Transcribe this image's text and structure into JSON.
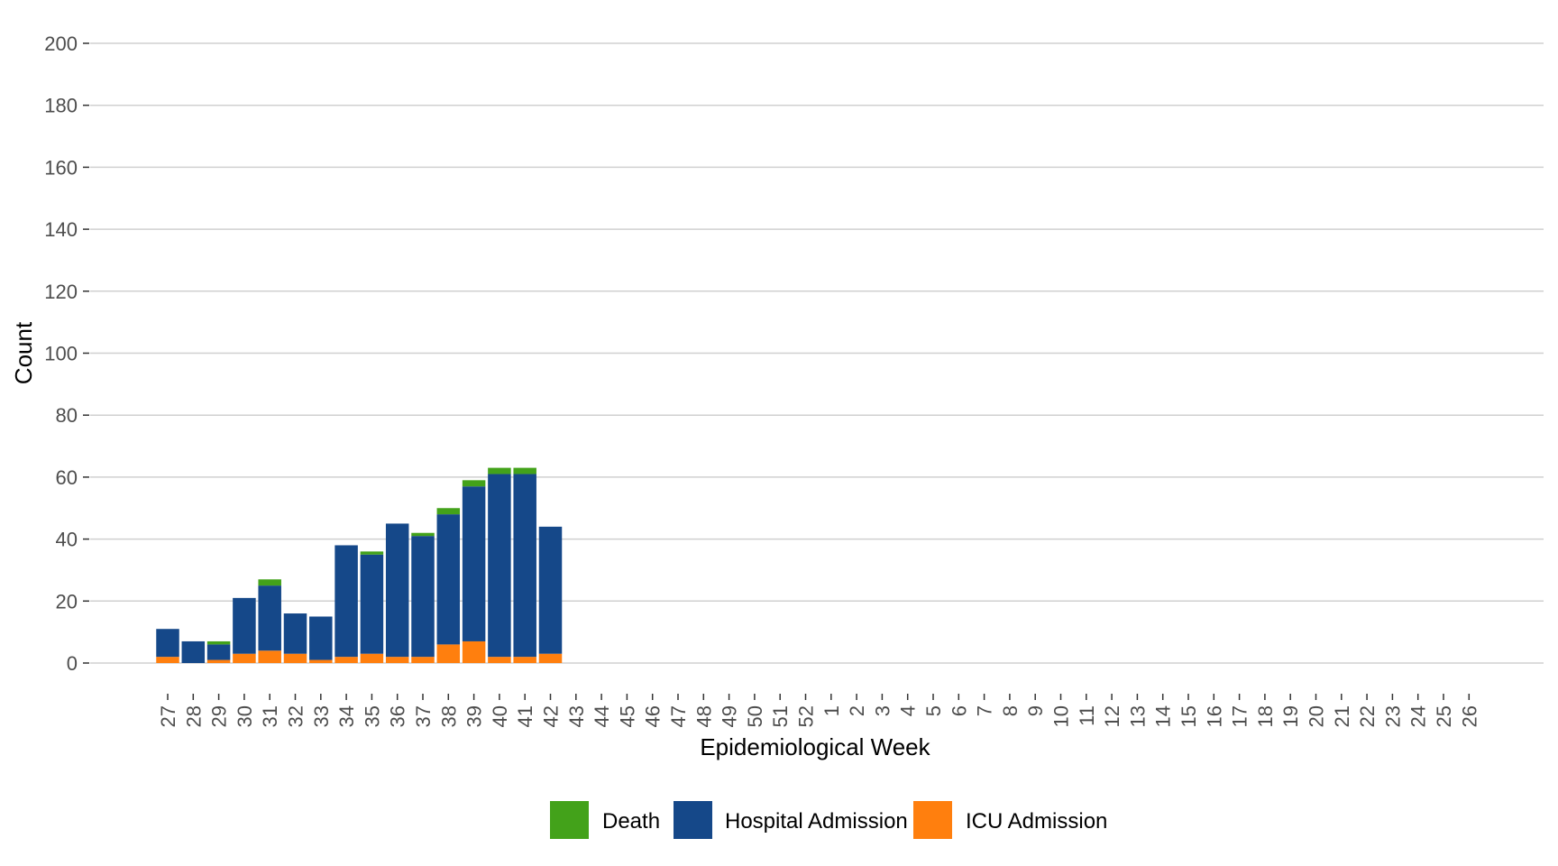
{
  "chart_data": {
    "type": "bar",
    "stacked": true,
    "xlabel": "Epidemiological Week",
    "ylabel": "Count",
    "ylim": [
      0,
      200
    ],
    "yticks": [
      0,
      20,
      40,
      60,
      80,
      100,
      120,
      140,
      160,
      180,
      200
    ],
    "grid": true,
    "legend_position": "bottom",
    "categories": [
      "27",
      "28",
      "29",
      "30",
      "31",
      "32",
      "33",
      "34",
      "35",
      "36",
      "37",
      "38",
      "39",
      "40",
      "41",
      "42",
      "43",
      "44",
      "45",
      "46",
      "47",
      "48",
      "49",
      "50",
      "51",
      "52",
      "1",
      "2",
      "3",
      "4",
      "5",
      "6",
      "7",
      "8",
      "9",
      "10",
      "11",
      "12",
      "13",
      "14",
      "15",
      "16",
      "17",
      "18",
      "19",
      "20",
      "21",
      "22",
      "23",
      "24",
      "25",
      "26"
    ],
    "series": [
      {
        "name": "ICU Admission",
        "color": "#ff7f0e",
        "values": [
          2,
          0,
          1,
          3,
          4,
          3,
          1,
          2,
          3,
          2,
          2,
          6,
          7,
          2,
          2,
          3,
          0,
          0,
          0,
          0,
          0,
          0,
          0,
          0,
          0,
          0,
          0,
          0,
          0,
          0,
          0,
          0,
          0,
          0,
          0,
          0,
          0,
          0,
          0,
          0,
          0,
          0,
          0,
          0,
          0,
          0,
          0,
          0,
          0,
          0,
          0,
          0
        ]
      },
      {
        "name": "Hospital Admission",
        "color": "#154889",
        "values": [
          9,
          7,
          5,
          18,
          21,
          13,
          14,
          36,
          32,
          43,
          39,
          42,
          50,
          59,
          59,
          41,
          0,
          0,
          0,
          0,
          0,
          0,
          0,
          0,
          0,
          0,
          0,
          0,
          0,
          0,
          0,
          0,
          0,
          0,
          0,
          0,
          0,
          0,
          0,
          0,
          0,
          0,
          0,
          0,
          0,
          0,
          0,
          0,
          0,
          0,
          0,
          0
        ]
      },
      {
        "name": "Death",
        "color": "#43a21a",
        "values": [
          0,
          0,
          1,
          0,
          2,
          0,
          0,
          0,
          1,
          0,
          1,
          2,
          2,
          2,
          2,
          0,
          0,
          0,
          0,
          0,
          0,
          0,
          0,
          0,
          0,
          0,
          0,
          0,
          0,
          0,
          0,
          0,
          0,
          0,
          0,
          0,
          0,
          0,
          0,
          0,
          0,
          0,
          0,
          0,
          0,
          0,
          0,
          0,
          0,
          0,
          0,
          0
        ]
      }
    ],
    "legend_order": [
      "Death",
      "Hospital Admission",
      "ICU Admission"
    ]
  }
}
